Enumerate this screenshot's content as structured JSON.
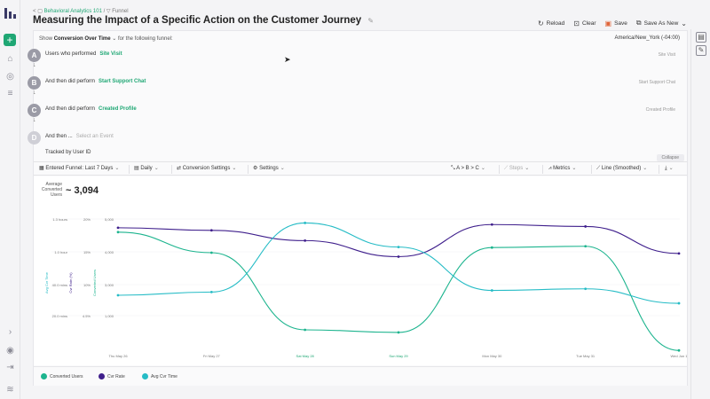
{
  "breadcrumb": {
    "back": "<",
    "folder": "Behavioral Analytics 101",
    "sep": "/",
    "type": "Funnel"
  },
  "page_title": "Measuring the Impact of a Specific Action on the Customer Journey",
  "actions": {
    "reload": "Reload",
    "clear": "Clear",
    "save": "Save",
    "save_as": "Save As New"
  },
  "show": {
    "prefix": "Show",
    "mode": "Conversion Over Time",
    "suffix": "for the following funnel:"
  },
  "timezone": "America/New_York (-04:00)",
  "steps": [
    {
      "letter": "A",
      "text": "Users who performed",
      "event": "Site Visit",
      "right": "Site Visit"
    },
    {
      "letter": "B",
      "text": "And then did perform",
      "event": "Start Support Chat",
      "right": "Start Support Chat"
    },
    {
      "letter": "C",
      "text": "And then did perform",
      "event": "Created Profile",
      "right": "Created Profile"
    },
    {
      "letter": "D",
      "text": "And then ...",
      "event": "Select an Event",
      "right": ""
    }
  ],
  "tracked_by": "Tracked by User ID",
  "collapse": "Collapse",
  "toolbar": {
    "entered": "Entered Funnel: Last 7 Days",
    "interval": "Daily",
    "conv_settings": "Conversion Settings",
    "settings": "Settings",
    "order": "A > B > C",
    "steps": "Steps",
    "metrics": "Metrics",
    "line": "Line (Smoothed)"
  },
  "avg": {
    "label": "Average Converted Users",
    "value": "~ 3,094"
  },
  "colors": {
    "converted": "#1cb48e",
    "cvr": "#3f1f8c",
    "time": "#26bcc6",
    "accent": "#1fa774"
  },
  "chart_data": {
    "type": "line",
    "categories": [
      "Thu May 26",
      "Fri May 27",
      "Sat May 28",
      "Sun May 29",
      "Mon May 30",
      "Tue May 31",
      "Wed Jun 1"
    ],
    "highlight_categories": [
      "Sat May 28",
      "Sun May 29"
    ],
    "axes": {
      "time": {
        "label": "Avg Cvr Time",
        "ticks": [
          "1.3 hours",
          "1.0 hour",
          "40.0 mins",
          "20.0 mins"
        ],
        "range_mins": [
          0,
          80
        ]
      },
      "rate": {
        "label": "Cvr Rate (%)",
        "ticks": [
          "20%",
          "15%",
          "10%",
          "4.5%"
        ],
        "range_pct": [
          0,
          20
        ]
      },
      "users": {
        "label": "Converted Users",
        "ticks": [
          "5,000",
          "4,000",
          "3,000",
          "1,000"
        ],
        "range": [
          0,
          5000
        ]
      }
    },
    "series": [
      {
        "name": "Converted Users",
        "axis": "users",
        "values": [
          4800,
          4000,
          1000,
          900,
          4200,
          4250,
          200
        ]
      },
      {
        "name": "Cvr Rate",
        "axis": "rate",
        "values": [
          18.5,
          18.1,
          16.5,
          14.0,
          19.0,
          18.7,
          14.5
        ]
      },
      {
        "name": "Avg Cvr Time",
        "axis": "time",
        "values": [
          32,
          34,
          77,
          62,
          35,
          36,
          27
        ]
      }
    ]
  }
}
